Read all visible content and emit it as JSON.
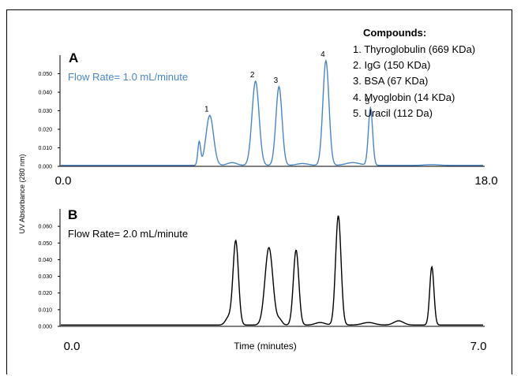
{
  "figure": {
    "y_axis_label": "UV Absorbance (280 nm)",
    "x_axis_label": "Time (minutes)"
  },
  "legend": {
    "heading": "Compounds:",
    "items": [
      "1. Thyroglobulin (669 KDa)",
      "2. IgG (150 KDa)",
      "3. BSA (67 KDa)",
      "4. Myoglobin (14 KDa)",
      "5. Uracil (112 Da)"
    ]
  },
  "colors": {
    "panel_a_trace": "#4a86c5",
    "panel_b_trace": "#000000"
  },
  "chart_data": [
    {
      "type": "line",
      "panel_letter": "A",
      "annotation": "Flow Rate= 1.0 mL/minute",
      "xlim": [
        0,
        18
      ],
      "x_tick_labels": [
        "0.0",
        "18.0"
      ],
      "ylim": [
        0,
        0.06
      ],
      "y_ticks": [
        "0.000",
        "0.010",
        "0.020",
        "0.030",
        "0.040",
        "0.050"
      ],
      "baseline": 0.0005,
      "peaks": [
        {
          "label": "",
          "x": 5.9,
          "height": 0.0125,
          "width": 0.06
        },
        {
          "label": "1",
          "x": 6.35,
          "height": 0.027,
          "width": 0.16
        },
        {
          "label": "",
          "x": 7.3,
          "height": 0.0015,
          "width": 0.2
        },
        {
          "label": "2",
          "x": 8.3,
          "height": 0.0455,
          "width": 0.15
        },
        {
          "label": "3",
          "x": 9.3,
          "height": 0.0425,
          "width": 0.13
        },
        {
          "label": "",
          "x": 10.3,
          "height": 0.001,
          "width": 0.25
        },
        {
          "label": "4",
          "x": 11.3,
          "height": 0.0565,
          "width": 0.13
        },
        {
          "label": "",
          "x": 12.45,
          "height": 0.0015,
          "width": 0.3
        },
        {
          "label": "5",
          "x": 13.2,
          "height": 0.031,
          "width": 0.09
        },
        {
          "label": "",
          "x": 15.8,
          "height": 0.0004,
          "width": 0.3
        }
      ]
    },
    {
      "type": "line",
      "panel_letter": "B",
      "annotation": "Flow Rate= 2.0 mL/minute",
      "xlim": [
        0,
        7
      ],
      "x_tick_labels": [
        "0.0",
        "7.0"
      ],
      "ylim": [
        0,
        0.07
      ],
      "y_ticks": [
        "0.000",
        "0.010",
        "0.020",
        "0.030",
        "0.040",
        "0.050",
        "0.060"
      ],
      "baseline": 0.0008,
      "peaks": [
        {
          "label": "",
          "x": 2.78,
          "height": 0.0045,
          "width": 0.05
        },
        {
          "label": "",
          "x": 2.9,
          "height": 0.0505,
          "width": 0.045
        },
        {
          "label": "",
          "x": 3.45,
          "height": 0.0465,
          "width": 0.065
        },
        {
          "label": "",
          "x": 3.63,
          "height": 0.003,
          "width": 0.04
        },
        {
          "label": "",
          "x": 3.9,
          "height": 0.045,
          "width": 0.045
        },
        {
          "label": "",
          "x": 4.3,
          "height": 0.0015,
          "width": 0.08
        },
        {
          "label": "",
          "x": 4.6,
          "height": 0.0655,
          "width": 0.045
        },
        {
          "label": "",
          "x": 5.1,
          "height": 0.0015,
          "width": 0.1
        },
        {
          "label": "",
          "x": 5.6,
          "height": 0.0025,
          "width": 0.08
        },
        {
          "label": "",
          "x": 6.15,
          "height": 0.035,
          "width": 0.035
        }
      ]
    }
  ]
}
